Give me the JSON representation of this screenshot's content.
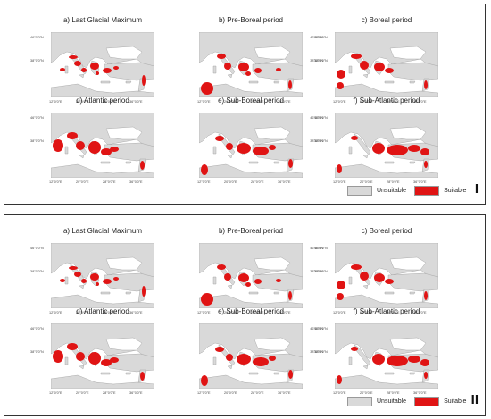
{
  "figure_panels": [
    {
      "id": "I",
      "roman_label": "I",
      "maps": [
        {
          "title": "a) Last Glacial Maximum"
        },
        {
          "title": "b) Pre-Boreal period"
        },
        {
          "title": "c) Boreal period"
        },
        {
          "title": "d) Atlantic period"
        },
        {
          "title": "e) Sub-Boreal period"
        },
        {
          "title": "f) Sub-Atlantic period"
        }
      ]
    },
    {
      "id": "II",
      "roman_label": "II",
      "maps": [
        {
          "title": "a) Last Glacial Maximum"
        },
        {
          "title": "b) Pre-Boreal period"
        },
        {
          "title": "c) Boreal period"
        },
        {
          "title": "d) Atlantic period"
        },
        {
          "title": "e) Sub-Boreal period"
        },
        {
          "title": "f) Sub-Atlantic period"
        }
      ]
    }
  ],
  "axis_labels": {
    "lat_top": "46°0'0\"N",
    "lat_bottom": "38°0'0\"N",
    "lon_1": "12°0'0\"E",
    "lon_2": "20°0'0\"E",
    "lon_3": "28°0'0\"E",
    "lon_4": "36°0'0\"E"
  },
  "legend": {
    "unsuitable_label": "Unsuitable",
    "suitable_label": "Suitable"
  },
  "colors": {
    "unsuitable": "#d9d9d9",
    "suitable": "#e01414",
    "sea": "#ffffff",
    "land_outline": "#9a9a9a"
  }
}
